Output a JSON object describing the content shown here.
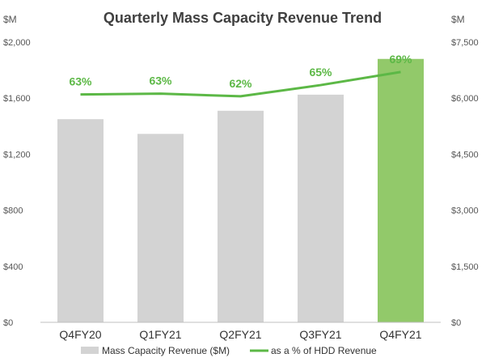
{
  "chart_data": {
    "type": "bar",
    "title": "Quarterly Mass Capacity Revenue Trend",
    "categories": [
      "Q4FY20",
      "Q1FY21",
      "Q2FY21",
      "Q3FY21",
      "Q4FY21"
    ],
    "series": [
      {
        "name": "Mass Capacity Revenue ($M)",
        "axis": "left",
        "values": [
          1450,
          1345,
          1510,
          1625,
          1880
        ],
        "color": "#d3d3d3",
        "highlight_color": "#92c96a",
        "highlight_index": 4
      },
      {
        "name": "as a % of HDD Revenue",
        "type": "line",
        "axis": "right",
        "values": [
          63,
          63,
          62,
          65,
          69
        ],
        "labels": [
          "63%",
          "63%",
          "62%",
          "65%",
          "69%"
        ],
        "color": "#5cb846"
      }
    ],
    "left_axis": {
      "unit": "$M",
      "ticks": [
        0,
        400,
        800,
        1200,
        1600,
        2000
      ],
      "tick_labels": [
        "$0",
        "$400",
        "$800",
        "$1,200",
        "$1,600",
        "$2,000"
      ],
      "ylim": [
        0,
        2000
      ]
    },
    "right_axis": {
      "unit": "$M",
      "ticks": [
        0,
        1500,
        3000,
        4500,
        6000,
        7500
      ],
      "tick_labels": [
        "$0",
        "$1,500",
        "$3,000",
        "$4,500",
        "$6,000",
        "$7,500"
      ],
      "ylim": [
        0,
        7500
      ]
    },
    "line_scale_note": "line positioned on right-axis scale",
    "line_positions_right_axis": [
      6100,
      6120,
      6050,
      6350,
      6700
    ],
    "legend": {
      "position": "bottom",
      "entries": [
        "Mass Capacity Revenue ($M)",
        "as a % of HDD Revenue"
      ]
    },
    "grid": false
  }
}
